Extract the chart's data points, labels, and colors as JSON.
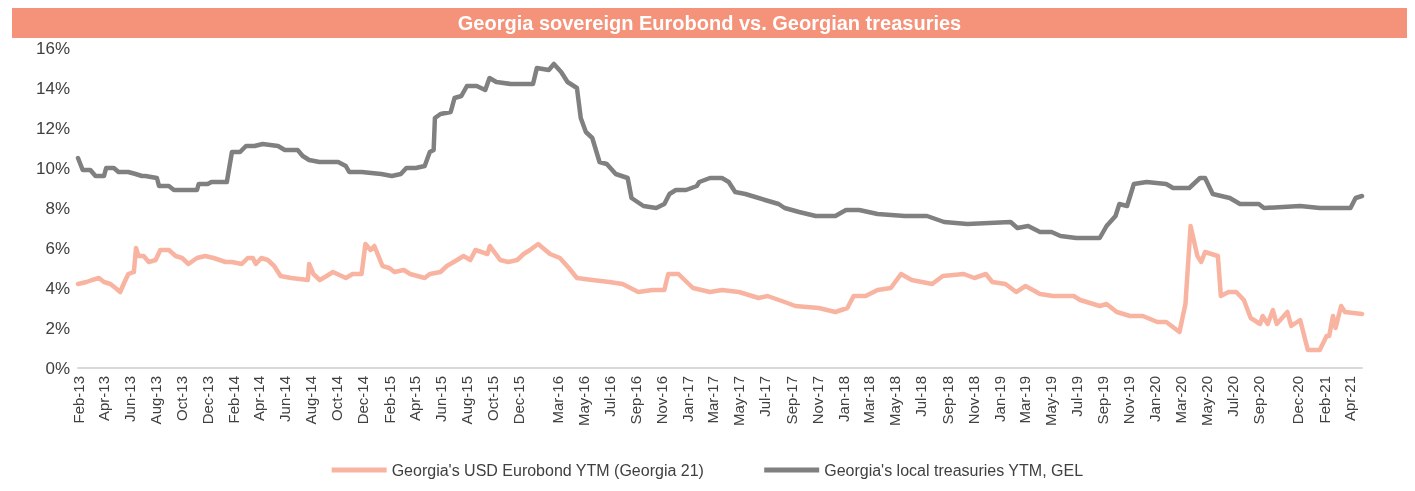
{
  "chart_data": {
    "type": "line",
    "title": "Georgia sovereign Eurobond vs. Georgian treasuries",
    "xlim": [
      "2013-02-01",
      "2021-05-01"
    ],
    "xticks": [
      {
        "value": "2013-02",
        "label": "Feb-13"
      },
      {
        "value": "2013-04",
        "label": "Apr-13"
      },
      {
        "value": "2013-06",
        "label": "Jun-13"
      },
      {
        "value": "2013-08",
        "label": "Aug-13"
      },
      {
        "value": "2013-10",
        "label": "Oct-13"
      },
      {
        "value": "2013-12",
        "label": "Dec-13"
      },
      {
        "value": "2014-02",
        "label": "Feb-14"
      },
      {
        "value": "2014-04",
        "label": "Apr-14"
      },
      {
        "value": "2014-06",
        "label": "Jun-14"
      },
      {
        "value": "2014-08",
        "label": "Aug-14"
      },
      {
        "value": "2014-10",
        "label": "Oct-14"
      },
      {
        "value": "2014-12",
        "label": "Dec-14"
      },
      {
        "value": "2015-02",
        "label": "Feb-15"
      },
      {
        "value": "2015-04",
        "label": "Apr-15"
      },
      {
        "value": "2015-06",
        "label": "Jun-15"
      },
      {
        "value": "2015-08",
        "label": "Aug-15"
      },
      {
        "value": "2015-10",
        "label": "Oct-15"
      },
      {
        "value": "2015-12",
        "label": "Dec-15"
      },
      {
        "value": "2016-03",
        "label": "Mar-16"
      },
      {
        "value": "2016-05",
        "label": "May-16"
      },
      {
        "value": "2016-07",
        "label": "Jul-16"
      },
      {
        "value": "2016-09",
        "label": "Sep-16"
      },
      {
        "value": "2016-11",
        "label": "Nov-16"
      },
      {
        "value": "2017-01",
        "label": "Jan-17"
      },
      {
        "value": "2017-03",
        "label": "Mar-17"
      },
      {
        "value": "2017-05",
        "label": "May-17"
      },
      {
        "value": "2017-07",
        "label": "Jul-17"
      },
      {
        "value": "2017-09",
        "label": "Sep-17"
      },
      {
        "value": "2017-11",
        "label": "Nov-17"
      },
      {
        "value": "2018-01",
        "label": "Jan-18"
      },
      {
        "value": "2018-03",
        "label": "Mar-18"
      },
      {
        "value": "2018-05",
        "label": "May-18"
      },
      {
        "value": "2018-07",
        "label": "Jul-18"
      },
      {
        "value": "2018-09",
        "label": "Sep-18"
      },
      {
        "value": "2018-11",
        "label": "Nov-18"
      },
      {
        "value": "2019-01",
        "label": "Jan-19"
      },
      {
        "value": "2019-03",
        "label": "Mar-19"
      },
      {
        "value": "2019-05",
        "label": "May-19"
      },
      {
        "value": "2019-07",
        "label": "Jul-19"
      },
      {
        "value": "2019-09",
        "label": "Sep-19"
      },
      {
        "value": "2019-11",
        "label": "Nov-19"
      },
      {
        "value": "2020-01",
        "label": "Jan-20"
      },
      {
        "value": "2020-03",
        "label": "Mar-20"
      },
      {
        "value": "2020-05",
        "label": "May-20"
      },
      {
        "value": "2020-07",
        "label": "Jul-20"
      },
      {
        "value": "2020-09",
        "label": "Sep-20"
      },
      {
        "value": "2020-12",
        "label": "Dec-20"
      },
      {
        "value": "2021-02",
        "label": "Feb-21"
      },
      {
        "value": "2021-04",
        "label": "Apr-21"
      }
    ],
    "ylim": [
      0,
      16
    ],
    "yticks": [
      {
        "value": 0,
        "label": "0%"
      },
      {
        "value": 2,
        "label": "2%"
      },
      {
        "value": 4,
        "label": "4%"
      },
      {
        "value": 6,
        "label": "6%"
      },
      {
        "value": 8,
        "label": "8%"
      },
      {
        "value": 10,
        "label": "10%"
      },
      {
        "value": 12,
        "label": "12%"
      },
      {
        "value": 14,
        "label": "14%"
      },
      {
        "value": 16,
        "label": "16%"
      }
    ],
    "grid": false,
    "legend": "bottom",
    "marker": "none",
    "line_style": "solid",
    "series": [
      {
        "name": "Georgia's USD Eurobond YTM (Georgia 21)",
        "color": "#f8b4a0",
        "x": [
          "2013-02-01",
          "2013-02-21",
          "2013-03-06",
          "2013-03-22",
          "2013-04-03",
          "2013-04-18",
          "2013-04-30",
          "2013-05-11",
          "2013-05-19",
          "2013-05-30",
          "2013-06-12",
          "2013-06-17",
          "2013-06-23",
          "2013-07-05",
          "2013-07-17",
          "2013-08-02",
          "2013-08-13",
          "2013-09-02",
          "2013-09-18",
          "2013-10-03",
          "2013-10-18",
          "2013-11-07",
          "2013-11-26",
          "2013-12-16",
          "2014-01-13",
          "2014-01-28",
          "2014-02-20",
          "2014-03-06",
          "2014-03-18",
          "2014-03-25",
          "2014-04-07",
          "2014-04-22",
          "2014-05-07",
          "2014-05-22",
          "2014-06-16",
          "2014-07-25",
          "2014-07-28",
          "2014-08-07",
          "2014-08-22",
          "2014-09-07",
          "2014-09-22",
          "2014-10-22",
          "2014-11-07",
          "2014-11-28",
          "2014-12-07",
          "2014-12-19",
          "2014-12-28",
          "2015-01-16",
          "2015-02-01",
          "2015-02-13",
          "2015-03-07",
          "2015-03-22",
          "2015-04-25",
          "2015-05-07",
          "2015-06-01",
          "2015-06-16",
          "2015-07-10",
          "2015-07-25",
          "2015-08-10",
          "2015-08-22",
          "2015-09-19",
          "2015-09-25",
          "2015-10-19",
          "2015-11-07",
          "2015-11-28",
          "2015-12-13",
          "2015-12-28",
          "2016-01-16",
          "2016-02-13",
          "2016-03-07",
          "2016-03-28",
          "2016-04-16",
          "2016-05-22",
          "2016-07-01",
          "2016-08-01",
          "2016-09-07",
          "2016-10-10",
          "2016-11-07",
          "2016-11-16",
          "2016-12-10",
          "2017-01-13",
          "2017-02-22",
          "2017-03-22",
          "2017-05-01",
          "2017-06-16",
          "2017-07-07",
          "2017-08-16",
          "2017-09-10",
          "2017-11-04",
          "2017-12-13",
          "2018-01-10",
          "2018-01-25",
          "2018-02-10",
          "2018-02-22",
          "2018-03-22",
          "2018-04-22",
          "2018-05-16",
          "2018-06-10",
          "2018-07-28",
          "2018-08-22",
          "2018-10-10",
          "2018-11-04",
          "2018-12-01",
          "2018-12-16",
          "2019-01-16",
          "2019-02-10",
          "2019-03-04",
          "2019-04-07",
          "2019-05-07",
          "2019-06-25",
          "2019-07-10",
          "2019-08-25",
          "2019-09-10",
          "2019-10-04",
          "2019-11-04",
          "2019-12-04",
          "2020-01-07",
          "2020-01-28",
          "2020-02-28",
          "2020-03-13",
          "2020-03-25",
          "2020-04-10",
          "2020-04-19",
          "2020-04-28",
          "2020-05-28",
          "2020-06-04",
          "2020-06-22",
          "2020-07-10",
          "2020-07-28",
          "2020-08-13",
          "2020-09-04",
          "2020-09-10",
          "2020-09-22",
          "2020-10-04",
          "2020-10-13",
          "2020-11-07",
          "2020-11-16",
          "2020-12-07",
          "2020-12-25",
          "2021-01-22",
          "2021-02-07",
          "2021-02-13",
          "2021-02-22",
          "2021-02-28",
          "2021-03-13",
          "2021-03-22",
          "2021-05-01"
        ],
        "values": [
          4.2,
          4.3,
          4.4,
          4.5,
          4.3,
          4.2,
          4.0,
          3.8,
          4.2,
          4.7,
          4.8,
          6.0,
          5.6,
          5.6,
          5.3,
          5.4,
          5.9,
          5.9,
          5.6,
          5.5,
          5.2,
          5.5,
          5.6,
          5.5,
          5.3,
          5.3,
          5.2,
          5.5,
          5.5,
          5.2,
          5.5,
          5.4,
          5.1,
          4.6,
          4.5,
          4.4,
          5.2,
          4.7,
          4.4,
          4.6,
          4.8,
          4.5,
          4.7,
          4.7,
          6.2,
          5.9,
          6.1,
          5.1,
          5.0,
          4.8,
          4.9,
          4.7,
          4.5,
          4.7,
          4.8,
          5.1,
          5.4,
          5.6,
          5.4,
          5.9,
          5.7,
          6.1,
          5.4,
          5.3,
          5.4,
          5.7,
          5.9,
          6.2,
          5.7,
          5.5,
          5.0,
          4.5,
          4.4,
          4.3,
          4.2,
          3.8,
          3.9,
          3.9,
          4.7,
          4.7,
          4.0,
          3.8,
          3.9,
          3.8,
          3.5,
          3.6,
          3.3,
          3.1,
          3.0,
          2.8,
          3.0,
          3.6,
          3.6,
          3.6,
          3.9,
          4.0,
          4.7,
          4.4,
          4.2,
          4.6,
          4.7,
          4.5,
          4.7,
          4.3,
          4.2,
          3.8,
          4.1,
          3.7,
          3.6,
          3.6,
          3.4,
          3.1,
          3.2,
          2.8,
          2.6,
          2.6,
          2.3,
          2.3,
          1.8,
          3.2,
          7.1,
          5.6,
          5.3,
          5.8,
          5.6,
          3.6,
          3.8,
          3.8,
          3.4,
          2.5,
          2.2,
          2.6,
          2.2,
          2.9,
          2.2,
          2.8,
          2.1,
          2.4,
          0.9,
          0.9,
          1.6,
          1.6,
          2.6,
          2.0,
          3.1,
          2.8,
          2.7
        ]
      },
      {
        "name": "Georgia's local treasuries YTM, GEL",
        "color": "#808080",
        "x": [
          "2013-02-01",
          "2013-02-12",
          "2013-03-02",
          "2013-03-14",
          "2013-04-03",
          "2013-04-08",
          "2013-04-26",
          "2013-05-07",
          "2013-05-30",
          "2013-06-16",
          "2013-07-01",
          "2013-07-09",
          "2013-08-05",
          "2013-08-10",
          "2013-09-02",
          "2013-09-14",
          "2013-10-07",
          "2013-11-07",
          "2013-11-11",
          "2013-12-02",
          "2013-12-11",
          "2014-01-16",
          "2014-01-28",
          "2014-02-16",
          "2014-03-02",
          "2014-03-22",
          "2014-04-10",
          "2014-05-16",
          "2014-06-01",
          "2014-07-01",
          "2014-07-13",
          "2014-07-28",
          "2014-08-21",
          "2014-10-04",
          "2014-10-22",
          "2014-10-30",
          "2014-11-28",
          "2015-01-13",
          "2015-02-07",
          "2015-02-28",
          "2015-03-13",
          "2015-04-04",
          "2015-04-25",
          "2015-05-07",
          "2015-05-16",
          "2015-05-19",
          "2015-06-01",
          "2015-06-25",
          "2015-07-04",
          "2015-07-20",
          "2015-08-02",
          "2015-08-25",
          "2015-09-14",
          "2015-09-24",
          "2015-10-10",
          "2015-11-13",
          "2016-01-04",
          "2016-01-13",
          "2016-02-10",
          "2016-02-22",
          "2016-03-10",
          "2016-03-25",
          "2016-04-16",
          "2016-04-25",
          "2016-05-07",
          "2016-05-22",
          "2016-06-08",
          "2016-06-25",
          "2016-07-16",
          "2016-08-13",
          "2016-08-22",
          "2016-09-19",
          "2016-10-19",
          "2016-11-07",
          "2016-11-19",
          "2016-12-04",
          "2016-12-28",
          "2017-01-22",
          "2017-01-28",
          "2017-02-22",
          "2017-03-22",
          "2017-04-07",
          "2017-04-22",
          "2017-05-16",
          "2017-07-01",
          "2017-08-02",
          "2017-08-16",
          "2017-09-19",
          "2017-10-28",
          "2017-12-13",
          "2018-01-07",
          "2018-02-07",
          "2018-03-22",
          "2018-05-25",
          "2018-07-16",
          "2018-08-25",
          "2018-10-19",
          "2019-01-28",
          "2019-02-13",
          "2019-03-10",
          "2019-04-07",
          "2019-05-04",
          "2019-05-25",
          "2019-07-01",
          "2019-08-25",
          "2019-09-10",
          "2019-10-01",
          "2019-10-10",
          "2019-10-28",
          "2019-11-13",
          "2019-12-13",
          "2020-01-28",
          "2020-02-13",
          "2020-03-22",
          "2020-04-16",
          "2020-04-28",
          "2020-05-16",
          "2020-06-25",
          "2020-07-19",
          "2020-09-01",
          "2020-09-13",
          "2020-12-07",
          "2021-01-22",
          "2021-04-04",
          "2021-04-16",
          "2021-05-01"
        ],
        "values": [
          10.5,
          9.9,
          9.9,
          9.6,
          9.6,
          10.0,
          10.0,
          9.8,
          9.8,
          9.7,
          9.6,
          9.6,
          9.5,
          9.1,
          9.1,
          8.9,
          8.9,
          8.9,
          9.2,
          9.2,
          9.3,
          9.3,
          10.8,
          10.8,
          11.1,
          11.1,
          11.2,
          11.1,
          10.9,
          10.9,
          10.6,
          10.4,
          10.3,
          10.3,
          10.1,
          9.8,
          9.8,
          9.7,
          9.6,
          9.7,
          10.0,
          10.0,
          10.1,
          10.8,
          10.9,
          12.5,
          12.7,
          12.8,
          13.5,
          13.6,
          14.1,
          14.1,
          13.9,
          14.5,
          14.3,
          14.2,
          14.2,
          15.0,
          14.9,
          15.2,
          14.8,
          14.3,
          14.0,
          12.5,
          11.8,
          11.5,
          10.3,
          10.2,
          9.7,
          9.5,
          8.5,
          8.1,
          8.0,
          8.2,
          8.7,
          8.9,
          8.9,
          9.1,
          9.3,
          9.5,
          9.5,
          9.3,
          8.8,
          8.7,
          8.4,
          8.2,
          8.0,
          7.8,
          7.6,
          7.6,
          7.9,
          7.9,
          7.7,
          7.6,
          7.6,
          7.3,
          7.2,
          7.3,
          7.0,
          7.1,
          6.8,
          6.8,
          6.6,
          6.5,
          6.5,
          7.1,
          7.6,
          8.2,
          8.1,
          9.2,
          9.3,
          9.2,
          9.0,
          9.0,
          9.5,
          9.5,
          8.7,
          8.5,
          8.2,
          8.2,
          8.0,
          8.1,
          8.0,
          8.0,
          8.5,
          8.6
        ]
      }
    ]
  }
}
